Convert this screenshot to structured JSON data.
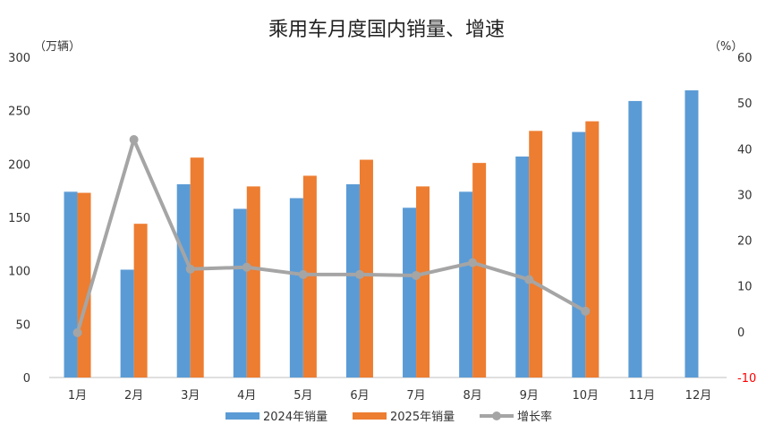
{
  "chart_data": {
    "type": "bar",
    "title": "乘用车月度国内销量、增速",
    "ylabel_left": "（万辆）",
    "ylabel_right": "（%）",
    "categories": [
      "1月",
      "2月",
      "3月",
      "4月",
      "5月",
      "6月",
      "7月",
      "8月",
      "9月",
      "10月",
      "11月",
      "12月"
    ],
    "ylim_left": [
      0,
      300
    ],
    "yticks_left": [
      0,
      50,
      100,
      150,
      200,
      250,
      300
    ],
    "ylim_right": [
      -10,
      60
    ],
    "yticks_right": [
      -10,
      0,
      10,
      20,
      30,
      40,
      50,
      60
    ],
    "grid": false,
    "legend_position": "bottom",
    "series": [
      {
        "name": "2024年销量",
        "kind": "bar",
        "axis": "left",
        "color": "#5B9BD5",
        "values": [
          174,
          101,
          181,
          158,
          168,
          181,
          159,
          174,
          207,
          230,
          259,
          269
        ]
      },
      {
        "name": "2025年销量",
        "kind": "bar",
        "axis": "left",
        "color": "#ED7D31",
        "values": [
          173,
          144,
          206,
          179,
          189,
          204,
          179,
          201,
          231,
          240,
          null,
          null
        ]
      },
      {
        "name": "增长率",
        "kind": "line",
        "axis": "right",
        "color": "#A5A5A5",
        "values": [
          -0.2,
          42.0,
          13.7,
          14.1,
          12.5,
          12.5,
          12.3,
          15.1,
          11.4,
          4.5,
          null,
          null
        ]
      }
    ],
    "negative_tick_color": "#FF0000"
  }
}
